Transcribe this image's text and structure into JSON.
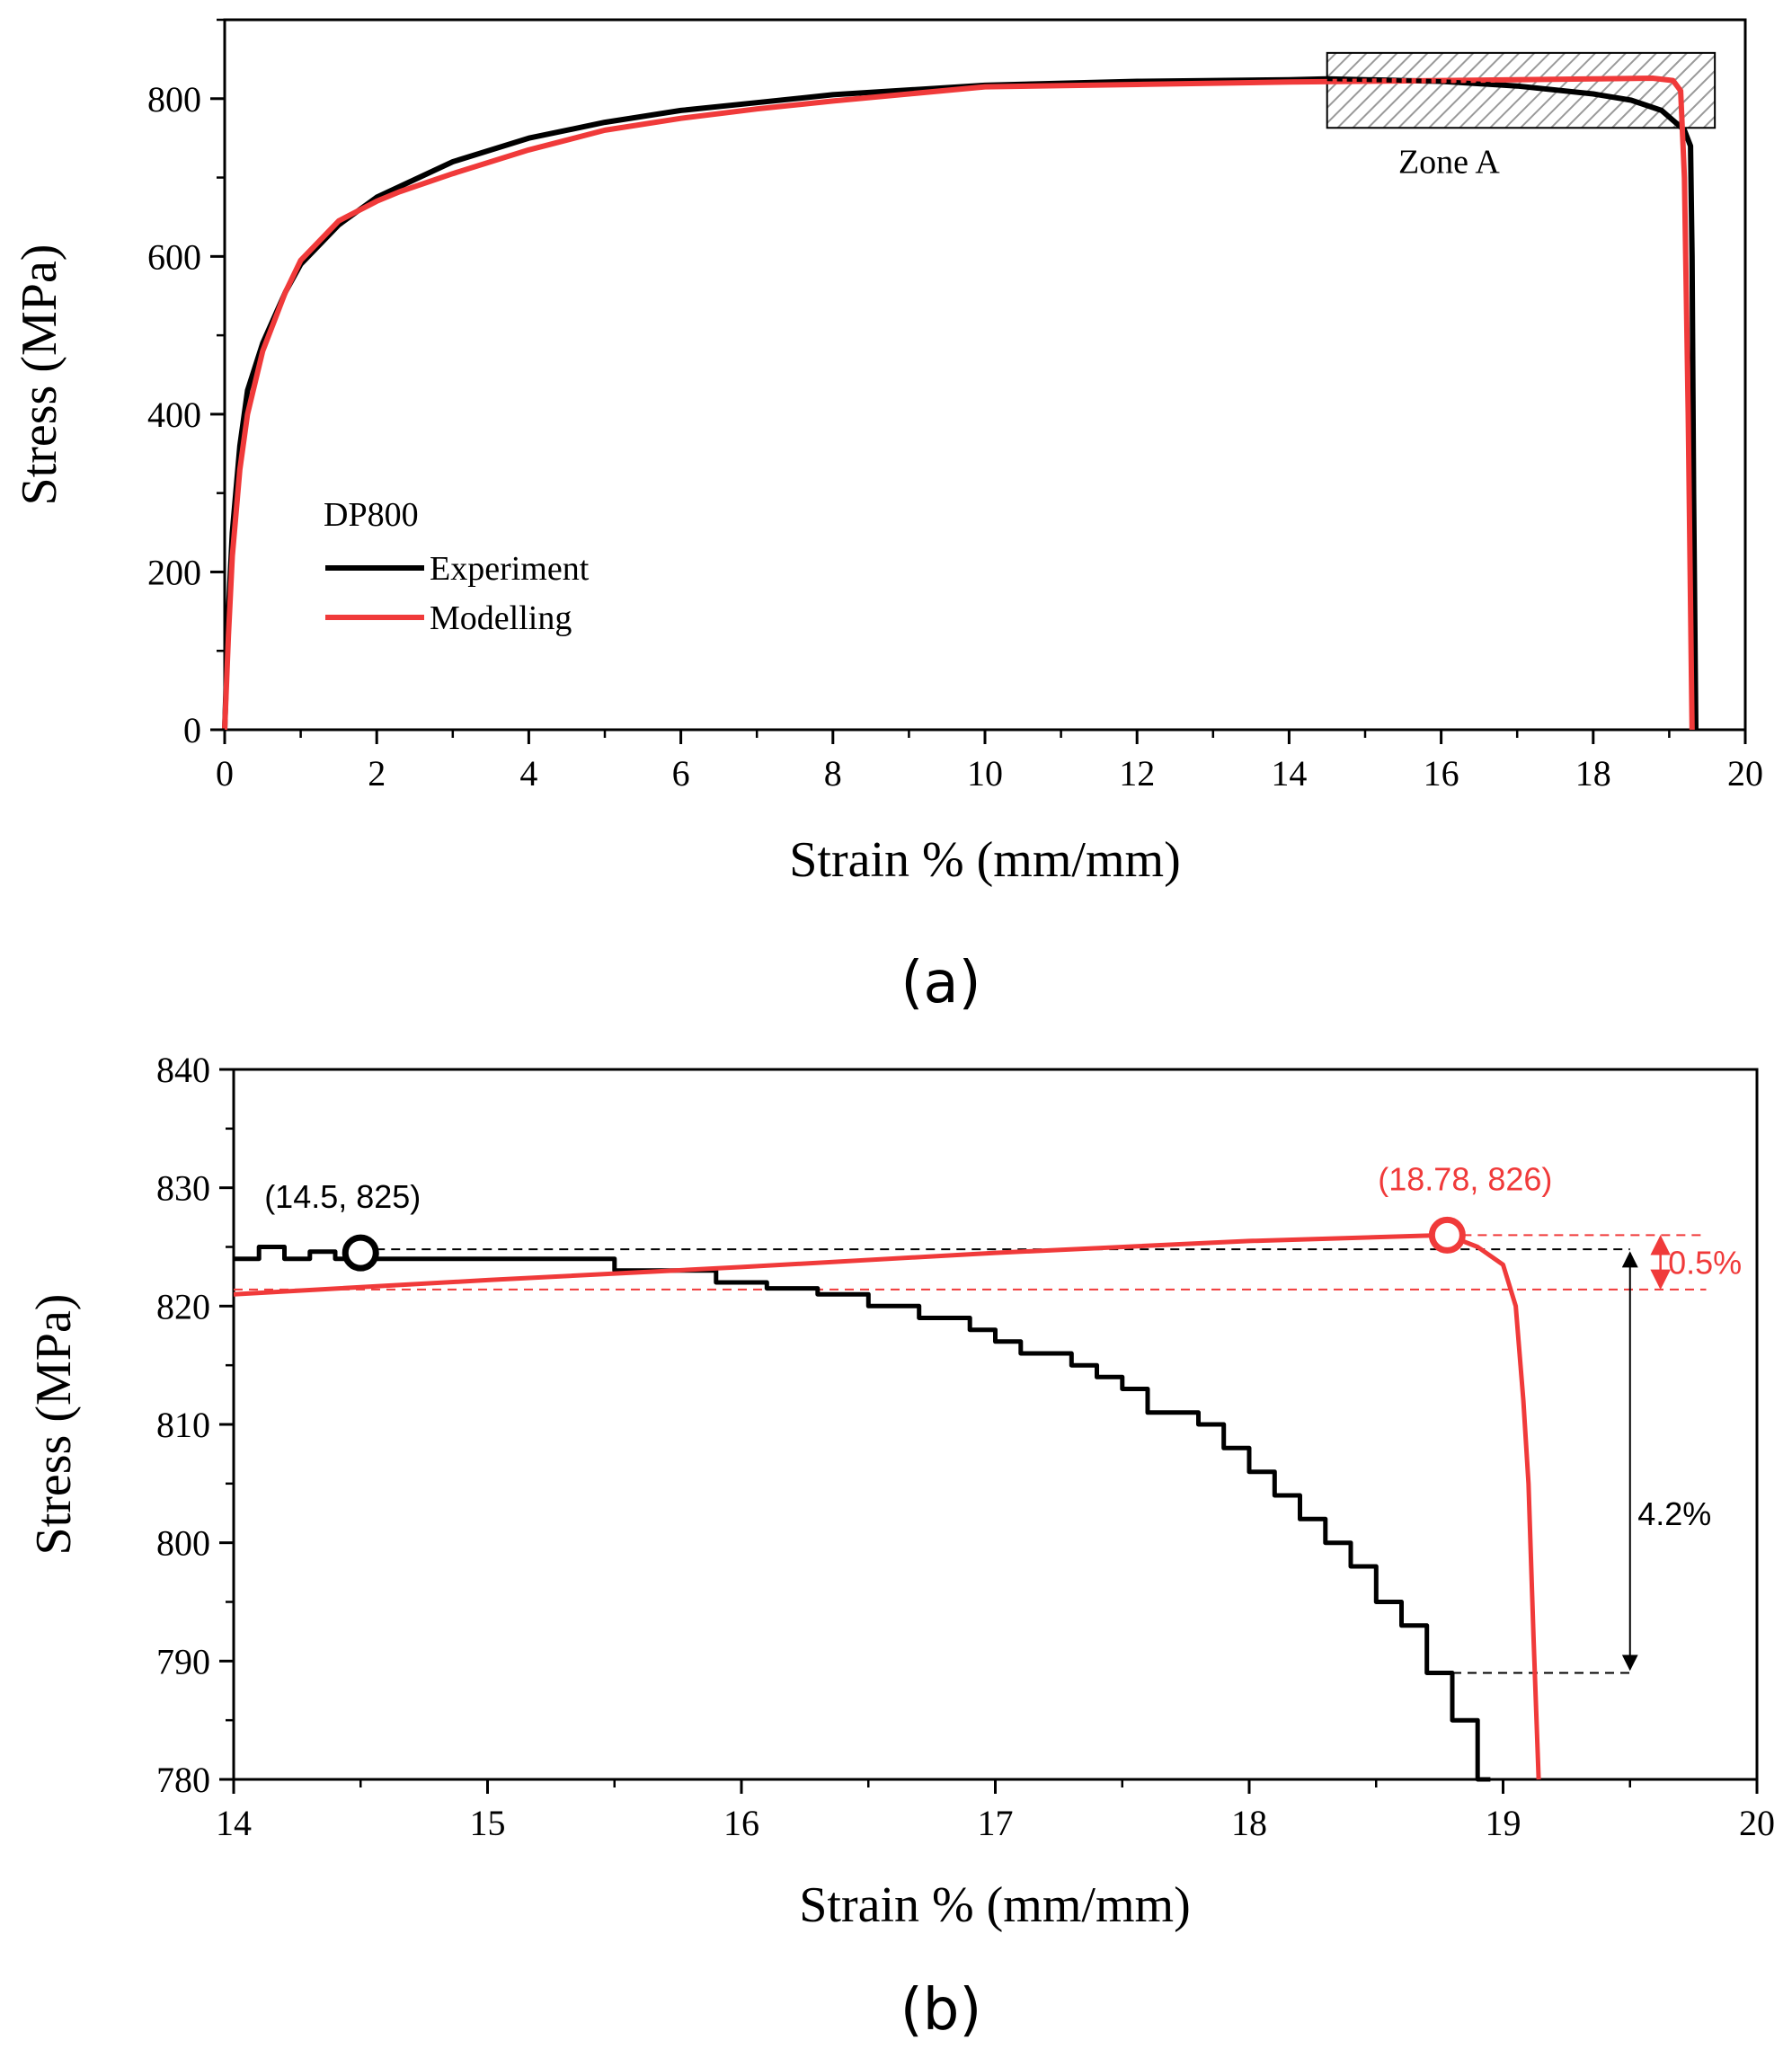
{
  "colors": {
    "experiment": "#000000",
    "modelling": "#f03a3a",
    "axis": "#000000",
    "hatch": "#9a9a9a"
  },
  "chart_data": [
    {
      "type": "line",
      "panel": "(a)",
      "xlabel": "Strain % (mm/mm)",
      "ylabel": "Stress (MPa)",
      "xlim": [
        0,
        20
      ],
      "ylim": [
        0,
        900
      ],
      "xticks": [
        0,
        2,
        4,
        6,
        8,
        10,
        12,
        14,
        16,
        18,
        20
      ],
      "yticks": [
        0,
        200,
        400,
        600,
        800
      ],
      "legend": {
        "title": "DP800",
        "entries": [
          "Experiment",
          "Modelling"
        ],
        "position": "left-middle"
      },
      "annotations": [
        {
          "text": "Zone A",
          "region": {
            "x": [
              14.5,
              19.6
            ],
            "y": [
              763,
              858
            ]
          }
        }
      ],
      "series": [
        {
          "name": "Experiment",
          "color": "#000000",
          "x": [
            0,
            0.05,
            0.1,
            0.2,
            0.3,
            0.5,
            0.8,
            1.0,
            1.5,
            2.0,
            3.0,
            4.0,
            5.0,
            6.0,
            7.0,
            8.0,
            10.0,
            12.0,
            14.0,
            14.5,
            15.5,
            16.0,
            17.0,
            18.0,
            18.5,
            18.9,
            19.2,
            19.28,
            19.3,
            19.32,
            19.35
          ],
          "y": [
            0,
            150,
            250,
            360,
            430,
            490,
            555,
            590,
            640,
            675,
            720,
            750,
            770,
            785,
            795,
            805,
            817,
            822,
            824,
            825,
            823,
            822,
            816,
            806,
            798,
            785,
            760,
            740,
            600,
            300,
            0
          ]
        },
        {
          "name": "Modelling",
          "color": "#f03a3a",
          "x": [
            0,
            0.05,
            0.1,
            0.2,
            0.3,
            0.5,
            0.8,
            1.0,
            1.5,
            2.0,
            2.3,
            3.0,
            4.0,
            5.0,
            6.0,
            7.0,
            8.0,
            10.0,
            12.0,
            14.0,
            16.0,
            18.0,
            18.78,
            19.05,
            19.15,
            19.2,
            19.25,
            19.3
          ],
          "y": [
            0,
            120,
            220,
            330,
            400,
            480,
            555,
            595,
            645,
            670,
            682,
            705,
            735,
            760,
            775,
            787,
            797,
            815,
            818,
            821,
            823,
            825,
            826,
            823,
            810,
            700,
            400,
            0
          ]
        }
      ]
    },
    {
      "type": "line",
      "panel": "(b)",
      "xlabel": "Strain % (mm/mm)",
      "ylabel": "Stress (MPa)",
      "xlim": [
        14,
        20
      ],
      "ylim": [
        780,
        840
      ],
      "xticks": [
        14,
        15,
        16,
        17,
        18,
        19,
        20
      ],
      "yticks": [
        780,
        790,
        800,
        810,
        820,
        830,
        840
      ],
      "series": [
        {
          "name": "Experiment",
          "color": "#000000",
          "step": true,
          "x": [
            14.0,
            14.1,
            14.2,
            14.3,
            14.4,
            14.6,
            15.5,
            15.9,
            16.1,
            16.3,
            16.5,
            16.7,
            16.9,
            17.0,
            17.1,
            17.3,
            17.4,
            17.5,
            17.6,
            17.8,
            17.9,
            18.0,
            18.1,
            18.2,
            18.3,
            18.4,
            18.5,
            18.6,
            18.7,
            18.8,
            18.9,
            18.95
          ],
          "y": [
            824,
            825,
            824,
            824.6,
            824,
            824,
            823,
            822,
            821.5,
            821,
            820,
            819,
            818,
            817,
            816,
            815,
            814,
            813,
            811,
            810,
            808,
            806,
            804,
            802,
            800,
            798,
            795,
            793,
            789,
            785,
            780,
            780
          ]
        },
        {
          "name": "Modelling",
          "color": "#f03a3a",
          "x": [
            14.0,
            15.0,
            16.0,
            17.0,
            18.0,
            18.78,
            18.9,
            19.0,
            19.05,
            19.08,
            19.1,
            19.12,
            19.14
          ],
          "y": [
            821,
            822.2,
            823.3,
            824.5,
            825.5,
            826,
            825,
            823.5,
            820,
            812,
            805,
            792,
            780
          ]
        }
      ],
      "points": [
        {
          "label": "(14.5,  825)",
          "x": 14.5,
          "y": 824.5,
          "color": "#000000"
        },
        {
          "label": "(18.78,  826)",
          "x": 18.78,
          "y": 826,
          "color": "#f03a3a"
        }
      ],
      "reference_lines": [
        {
          "y": 824.8,
          "x": [
            14.5,
            19.5
          ],
          "color": "#000000",
          "dashed": true
        },
        {
          "y": 826,
          "x": [
            18.78,
            19.8
          ],
          "color": "#f03a3a",
          "dashed": true
        },
        {
          "y": 821.4,
          "x": [
            14.0,
            19.8
          ],
          "color": "#f03a3a",
          "dashed": true
        },
        {
          "y": 789,
          "x": [
            18.8,
            19.5
          ],
          "color": "#000000",
          "dashed": true
        }
      ],
      "annotations": [
        {
          "text": "0.5%",
          "x": 19.65,
          "y": 823.7,
          "color": "#f03a3a"
        },
        {
          "text": "4.2%",
          "x": 19.5,
          "y": 802.5,
          "color": "#000000"
        }
      ]
    }
  ],
  "captions": {
    "a": "(a)",
    "b": "(b)"
  }
}
